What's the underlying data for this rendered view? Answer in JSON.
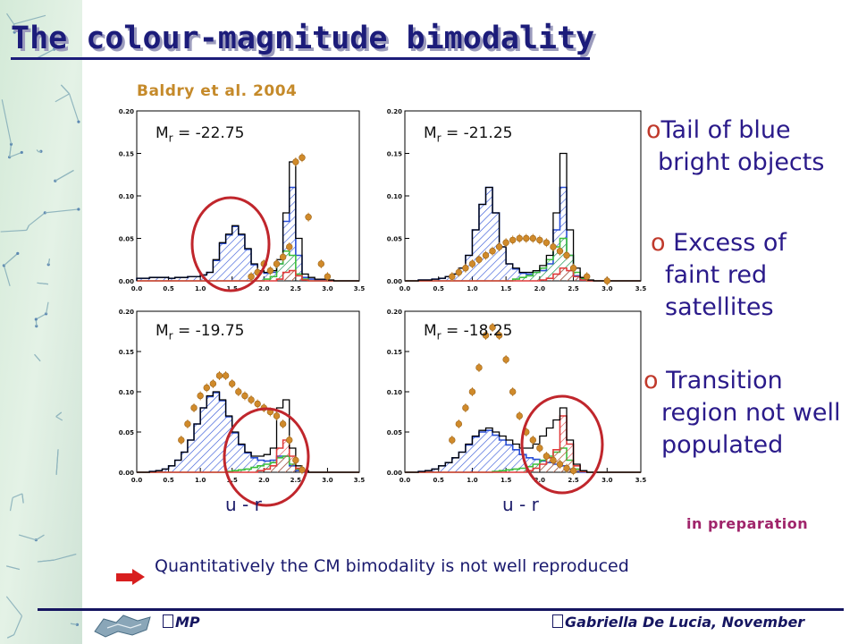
{
  "title": "The colour-magnitude bimodality",
  "source": "Baldry et al. 2004",
  "panels": [
    {
      "label_main": "M",
      "label_sub": "r",
      "label_value": " = -22.75"
    },
    {
      "label_main": "M",
      "label_sub": "r",
      "label_value": " = -21.25"
    },
    {
      "label_main": "M",
      "label_sub": "r",
      "label_value": " = -19.75"
    },
    {
      "label_main": "M",
      "label_sub": "r",
      "label_value": " = -18.25"
    }
  ],
  "xlabel": "u - r",
  "bullets": [
    {
      "marker": "o",
      "lines": [
        "Tail of blue",
        "bright objects"
      ]
    },
    {
      "marker": "o",
      "lines": [
        "Excess of",
        "faint red",
        "satellites"
      ]
    },
    {
      "marker": "o",
      "lines": [
        "Transition",
        "region not well",
        "populated"
      ]
    }
  ],
  "in_preparation": "in preparation",
  "conclusion": "Quantitatively the CM bimodality is not well reproduced",
  "footer": {
    "left": "MP",
    "right": "Gabriella De Lucia, November"
  },
  "colors": {
    "title": "#1c1c7a",
    "blue_hist": "#2a4fd6",
    "green_hist": "#3bbf3b",
    "red_hist": "#e03a3a",
    "black_hist": "#000000",
    "points": "#d08a2a",
    "circle": "#c0262c",
    "arrow": "#d81e1e"
  },
  "chart_data": [
    {
      "type": "bar",
      "panel_label": "Mr = -22.75",
      "xlim": [
        0.0,
        3.5
      ],
      "ylim": [
        0.0,
        0.2
      ],
      "xticks": [
        "0.0",
        "0.5",
        "1.0",
        "1.5",
        "2.0",
        "2.5",
        "3.0",
        "3.5"
      ],
      "yticks": [
        "0.00",
        "0.05",
        "0.10",
        "0.15",
        "0.20"
      ],
      "x": [
        0.0,
        0.1,
        0.2,
        0.3,
        0.4,
        0.5,
        0.6,
        0.7,
        0.8,
        0.9,
        1.0,
        1.1,
        1.2,
        1.3,
        1.4,
        1.5,
        1.6,
        1.7,
        1.8,
        1.9,
        2.0,
        2.1,
        2.2,
        2.3,
        2.4,
        2.5,
        2.6,
        2.7,
        2.8,
        2.9,
        3.0,
        3.1,
        3.2,
        3.3,
        3.4
      ],
      "series": [
        {
          "name": "black",
          "values": [
            0.003,
            0.003,
            0.004,
            0.004,
            0.004,
            0.003,
            0.004,
            0.004,
            0.005,
            0.005,
            0.007,
            0.01,
            0.025,
            0.045,
            0.055,
            0.065,
            0.055,
            0.038,
            0.02,
            0.012,
            0.01,
            0.012,
            0.025,
            0.08,
            0.14,
            0.05,
            0.008,
            0.004,
            0.002,
            0.002,
            0.001,
            0.0,
            0.0,
            0.0,
            0.0
          ]
        },
        {
          "name": "blue",
          "values": [
            0.003,
            0.003,
            0.004,
            0.004,
            0.004,
            0.003,
            0.004,
            0.004,
            0.005,
            0.005,
            0.007,
            0.01,
            0.024,
            0.044,
            0.054,
            0.064,
            0.054,
            0.037,
            0.019,
            0.011,
            0.009,
            0.01,
            0.02,
            0.07,
            0.11,
            0.03,
            0.004,
            0.002,
            0.001,
            0.001,
            0.0,
            0.0,
            0.0,
            0.0,
            0.0
          ]
        },
        {
          "name": "green",
          "values": [
            0,
            0,
            0,
            0,
            0,
            0,
            0,
            0,
            0,
            0,
            0,
            0,
            0,
            0,
            0,
            0,
            0,
            0,
            0,
            0,
            0.002,
            0.005,
            0.02,
            0.035,
            0.03,
            0.008,
            0.002,
            0,
            0,
            0,
            0,
            0,
            0,
            0,
            0
          ]
        },
        {
          "name": "red",
          "values": [
            0,
            0,
            0,
            0,
            0,
            0,
            0,
            0,
            0,
            0,
            0,
            0,
            0,
            0,
            0,
            0,
            0,
            0,
            0,
            0,
            0,
            0,
            0.002,
            0.01,
            0.012,
            0.006,
            0.001,
            0,
            0,
            0,
            0,
            0,
            0,
            0,
            0
          ]
        }
      ],
      "points": {
        "x": [
          1.8,
          1.9,
          2.0,
          2.1,
          2.2,
          2.3,
          2.4,
          2.5,
          2.6,
          2.7,
          2.9,
          3.0
        ],
        "y": [
          0.005,
          0.01,
          0.02,
          0.012,
          0.02,
          0.028,
          0.04,
          0.14,
          0.145,
          0.075,
          0.02,
          0.005
        ]
      }
    },
    {
      "type": "bar",
      "panel_label": "Mr = -21.25",
      "xlim": [
        0.0,
        3.5
      ],
      "ylim": [
        0.0,
        0.2
      ],
      "xticks": [
        "0.0",
        "0.5",
        "1.0",
        "1.5",
        "2.0",
        "2.5",
        "3.0",
        "3.5"
      ],
      "yticks": [
        "0.00",
        "0.05",
        "0.10",
        "0.15",
        "0.20"
      ],
      "x": [
        0.0,
        0.1,
        0.2,
        0.3,
        0.4,
        0.5,
        0.6,
        0.7,
        0.8,
        0.9,
        1.0,
        1.1,
        1.2,
        1.3,
        1.4,
        1.5,
        1.6,
        1.7,
        1.8,
        1.9,
        2.0,
        2.1,
        2.2,
        2.3,
        2.4,
        2.5,
        2.6,
        2.7,
        2.8,
        2.9,
        3.0,
        3.1,
        3.2,
        3.3,
        3.4
      ],
      "series": [
        {
          "name": "black",
          "values": [
            0.0,
            0.0,
            0.001,
            0.001,
            0.002,
            0.003,
            0.005,
            0.008,
            0.015,
            0.03,
            0.06,
            0.09,
            0.11,
            0.08,
            0.04,
            0.02,
            0.015,
            0.01,
            0.01,
            0.012,
            0.018,
            0.03,
            0.08,
            0.15,
            0.06,
            0.015,
            0.004,
            0.001,
            0.0,
            0.0,
            0.0,
            0.0,
            0.0,
            0.0,
            0.0
          ]
        },
        {
          "name": "blue",
          "values": [
            0.0,
            0.0,
            0.001,
            0.001,
            0.002,
            0.003,
            0.005,
            0.008,
            0.015,
            0.03,
            0.06,
            0.09,
            0.11,
            0.08,
            0.04,
            0.02,
            0.014,
            0.009,
            0.008,
            0.01,
            0.012,
            0.02,
            0.06,
            0.11,
            0.03,
            0.006,
            0.001,
            0.0,
            0.0,
            0.0,
            0.0,
            0.0,
            0.0,
            0.0,
            0.0
          ]
        },
        {
          "name": "green",
          "values": [
            0,
            0,
            0,
            0,
            0,
            0,
            0,
            0,
            0,
            0,
            0,
            0,
            0,
            0,
            0,
            0,
            0.002,
            0.004,
            0.006,
            0.01,
            0.015,
            0.025,
            0.04,
            0.05,
            0.03,
            0.01,
            0.003,
            0,
            0,
            0,
            0,
            0,
            0,
            0,
            0
          ]
        },
        {
          "name": "red",
          "values": [
            0,
            0,
            0,
            0,
            0,
            0,
            0,
            0,
            0,
            0,
            0,
            0,
            0,
            0,
            0,
            0,
            0,
            0,
            0,
            0,
            0.001,
            0.003,
            0.008,
            0.015,
            0.012,
            0.005,
            0.001,
            0,
            0,
            0,
            0,
            0,
            0,
            0,
            0
          ]
        }
      ],
      "points": {
        "x": [
          0.7,
          0.8,
          0.9,
          1.0,
          1.1,
          1.2,
          1.3,
          1.4,
          1.5,
          1.6,
          1.7,
          1.8,
          1.9,
          2.0,
          2.1,
          2.2,
          2.3,
          2.4,
          2.5,
          2.7,
          3.0
        ],
        "y": [
          0.005,
          0.01,
          0.015,
          0.02,
          0.025,
          0.03,
          0.035,
          0.04,
          0.045,
          0.048,
          0.05,
          0.05,
          0.05,
          0.048,
          0.045,
          0.04,
          0.035,
          0.03,
          0.015,
          0.005,
          0.0
        ]
      }
    },
    {
      "type": "bar",
      "panel_label": "Mr = -19.75",
      "xlim": [
        0.0,
        3.5
      ],
      "ylim": [
        0.0,
        0.2
      ],
      "xticks": [
        "0.0",
        "0.5",
        "1.0",
        "1.5",
        "2.0",
        "2.5",
        "3.0",
        "3.5"
      ],
      "yticks": [
        "0.00",
        "0.05",
        "0.10",
        "0.15",
        "0.20"
      ],
      "x": [
        0.0,
        0.1,
        0.2,
        0.3,
        0.4,
        0.5,
        0.6,
        0.7,
        0.8,
        0.9,
        1.0,
        1.1,
        1.2,
        1.3,
        1.4,
        1.5,
        1.6,
        1.7,
        1.8,
        1.9,
        2.0,
        2.1,
        2.2,
        2.3,
        2.4,
        2.5,
        2.6,
        2.7,
        2.8,
        2.9,
        3.0,
        3.1,
        3.2,
        3.3,
        3.4
      ],
      "series": [
        {
          "name": "black",
          "values": [
            0.0,
            0.0,
            0.001,
            0.002,
            0.004,
            0.008,
            0.015,
            0.025,
            0.04,
            0.06,
            0.08,
            0.095,
            0.1,
            0.09,
            0.07,
            0.05,
            0.035,
            0.025,
            0.02,
            0.02,
            0.022,
            0.03,
            0.08,
            0.09,
            0.03,
            0.008,
            0.002,
            0.0,
            0.0,
            0.0,
            0.0,
            0.0,
            0.0,
            0.0,
            0.0
          ]
        },
        {
          "name": "blue",
          "values": [
            0.0,
            0.0,
            0.001,
            0.002,
            0.004,
            0.008,
            0.015,
            0.025,
            0.04,
            0.06,
            0.08,
            0.094,
            0.099,
            0.089,
            0.069,
            0.049,
            0.034,
            0.024,
            0.018,
            0.015,
            0.014,
            0.015,
            0.02,
            0.02,
            0.008,
            0.002,
            0.0,
            0.0,
            0.0,
            0.0,
            0.0,
            0.0,
            0.0,
            0.0,
            0.0
          ]
        },
        {
          "name": "green",
          "values": [
            0,
            0,
            0,
            0,
            0,
            0,
            0,
            0,
            0,
            0,
            0,
            0,
            0,
            0,
            0.001,
            0.002,
            0.003,
            0.004,
            0.006,
            0.008,
            0.01,
            0.012,
            0.018,
            0.02,
            0.01,
            0.004,
            0.001,
            0,
            0,
            0,
            0,
            0,
            0,
            0,
            0
          ]
        },
        {
          "name": "red",
          "values": [
            0,
            0,
            0,
            0,
            0,
            0,
            0,
            0,
            0,
            0,
            0,
            0,
            0,
            0,
            0,
            0,
            0,
            0,
            0,
            0.002,
            0.004,
            0.008,
            0.03,
            0.04,
            0.02,
            0.005,
            0.001,
            0,
            0,
            0,
            0,
            0,
            0,
            0,
            0
          ]
        }
      ],
      "points": {
        "x": [
          0.7,
          0.8,
          0.9,
          1.0,
          1.1,
          1.2,
          1.3,
          1.4,
          1.5,
          1.6,
          1.7,
          1.8,
          1.9,
          2.0,
          2.1,
          2.2,
          2.3,
          2.4,
          2.5,
          2.6
        ],
        "y": [
          0.04,
          0.06,
          0.08,
          0.095,
          0.105,
          0.11,
          0.12,
          0.12,
          0.11,
          0.1,
          0.095,
          0.09,
          0.085,
          0.08,
          0.075,
          0.07,
          0.06,
          0.04,
          0.015,
          0.003
        ]
      }
    },
    {
      "type": "bar",
      "panel_label": "Mr = -18.25",
      "xlim": [
        0.0,
        3.5
      ],
      "ylim": [
        0.0,
        0.2
      ],
      "xticks": [
        "0.0",
        "0.5",
        "1.0",
        "1.5",
        "2.0",
        "2.5",
        "3.0",
        "3.5"
      ],
      "yticks": [
        "0.00",
        "0.05",
        "0.10",
        "0.15",
        "0.20"
      ],
      "x": [
        0.0,
        0.1,
        0.2,
        0.3,
        0.4,
        0.5,
        0.6,
        0.7,
        0.8,
        0.9,
        1.0,
        1.1,
        1.2,
        1.3,
        1.4,
        1.5,
        1.6,
        1.7,
        1.8,
        1.9,
        2.0,
        2.1,
        2.2,
        2.3,
        2.4,
        2.5,
        2.6,
        2.7,
        2.8,
        2.9,
        3.0,
        3.1,
        3.2,
        3.3,
        3.4
      ],
      "series": [
        {
          "name": "black",
          "values": [
            0.0,
            0.0,
            0.001,
            0.002,
            0.004,
            0.008,
            0.012,
            0.018,
            0.025,
            0.035,
            0.045,
            0.052,
            0.055,
            0.05,
            0.045,
            0.04,
            0.035,
            0.03,
            0.03,
            0.035,
            0.045,
            0.055,
            0.065,
            0.08,
            0.04,
            0.01,
            0.002,
            0.0,
            0.0,
            0.0,
            0.0,
            0.0,
            0.0,
            0.0,
            0.0
          ]
        },
        {
          "name": "blue",
          "values": [
            0.0,
            0.0,
            0.001,
            0.002,
            0.004,
            0.008,
            0.012,
            0.018,
            0.025,
            0.034,
            0.044,
            0.05,
            0.052,
            0.046,
            0.04,
            0.034,
            0.028,
            0.022,
            0.018,
            0.016,
            0.014,
            0.012,
            0.01,
            0.008,
            0.004,
            0.001,
            0.0,
            0.0,
            0.0,
            0.0,
            0.0,
            0.0,
            0.0,
            0.0,
            0.0
          ]
        },
        {
          "name": "green",
          "values": [
            0,
            0,
            0,
            0,
            0,
            0,
            0,
            0,
            0,
            0,
            0,
            0,
            0,
            0.001,
            0.002,
            0.003,
            0.004,
            0.005,
            0.007,
            0.01,
            0.015,
            0.02,
            0.025,
            0.03,
            0.015,
            0.004,
            0.001,
            0,
            0,
            0,
            0,
            0,
            0,
            0,
            0
          ]
        },
        {
          "name": "red",
          "values": [
            0,
            0,
            0,
            0,
            0,
            0,
            0,
            0,
            0,
            0,
            0,
            0,
            0,
            0,
            0,
            0,
            0,
            0,
            0.002,
            0.005,
            0.01,
            0.018,
            0.028,
            0.07,
            0.035,
            0.008,
            0.001,
            0,
            0,
            0,
            0,
            0,
            0,
            0,
            0
          ]
        }
      ],
      "points": {
        "x": [
          0.7,
          0.8,
          0.9,
          1.0,
          1.1,
          1.2,
          1.3,
          1.4,
          1.5,
          1.6,
          1.7,
          1.8,
          1.9,
          2.0,
          2.1,
          2.2,
          2.3,
          2.4,
          2.5
        ],
        "y": [
          0.04,
          0.06,
          0.08,
          0.1,
          0.13,
          0.17,
          0.18,
          0.17,
          0.14,
          0.1,
          0.07,
          0.05,
          0.04,
          0.03,
          0.02,
          0.015,
          0.01,
          0.005,
          0.002
        ]
      }
    }
  ]
}
